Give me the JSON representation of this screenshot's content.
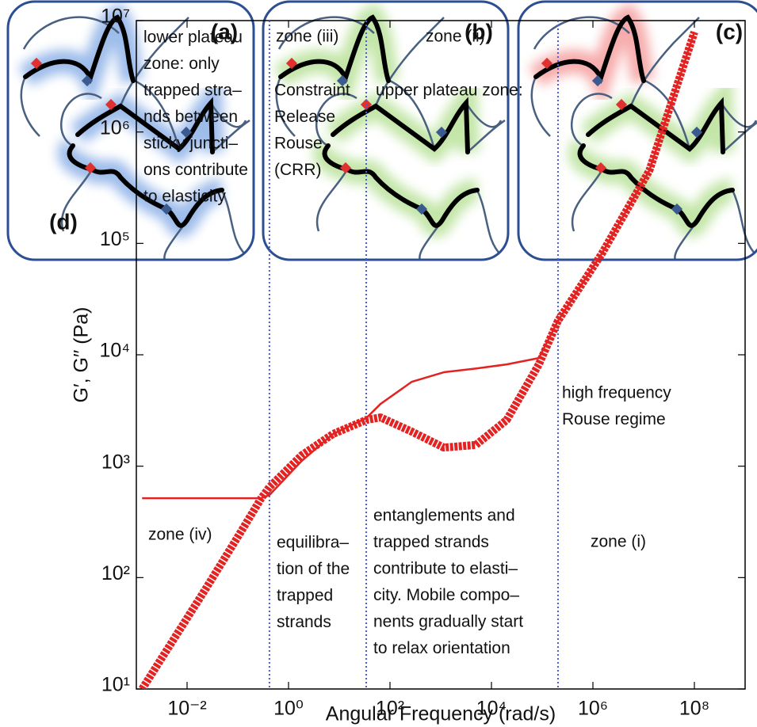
{
  "panel_labels": [
    "(a)",
    "(b)",
    "(c)"
  ],
  "chart_data": {
    "type": "line",
    "panel_label": "(d)",
    "xlabel": "Angular Frequency (rad/s)",
    "ylabel": "G′, G′′ (Pa)",
    "xscale": "log",
    "yscale": "log",
    "xlim": [
      0.001,
      1000000000
    ],
    "ylim": [
      10,
      10000000
    ],
    "xticks": [
      {
        "value": 0.01,
        "label": "10⁻²"
      },
      {
        "value": 1,
        "label": "10⁰"
      },
      {
        "value": 100,
        "label": "10²"
      },
      {
        "value": 10000,
        "label": "10⁴"
      },
      {
        "value": 1000000,
        "label": "10⁶"
      },
      {
        "value": 100000000,
        "label": "10⁸"
      }
    ],
    "yticks": [
      {
        "value": 10,
        "label": "10¹"
      },
      {
        "value": 100,
        "label": "10²"
      },
      {
        "value": 1000,
        "label": "10³"
      },
      {
        "value": 10000,
        "label": "10⁴"
      },
      {
        "value": 100000,
        "label": "10⁵"
      },
      {
        "value": 1000000,
        "label": "10⁶"
      },
      {
        "value": 10000000,
        "label": "10⁷"
      }
    ],
    "grid": false,
    "x": [
      0.0013,
      0.0056,
      0.024,
      0.1,
      0.29,
      0.42,
      1.8,
      7.5,
      34,
      65,
      270,
      1150,
      4900,
      20000,
      86000,
      205000,
      1500000,
      13000000,
      100000000
    ],
    "series": [
      {
        "color": "#e32222",
        "marker": "none",
        "values": [
          516,
          516,
          516,
          516,
          516,
          551,
          1110,
          1945,
          2700,
          3620,
          5730,
          6970,
          7530,
          8200,
          9350,
          20200,
          81000,
          452000,
          7900000
        ]
      },
      {
        "color": "#e32222",
        "marker": "x",
        "values": [
          10,
          28.5,
          81,
          232,
          516,
          649,
          1250,
          1945,
          2600,
          2740,
          2040,
          1470,
          1550,
          2600,
          8200,
          20200,
          81000,
          452000,
          7900000
        ]
      }
    ],
    "zone_boundaries": [
      0.42,
      34,
      205000
    ],
    "zone_boundary_color": "#4a5bd4",
    "annotations": [
      [
        "lower plateau",
        "zone: only",
        "trapped stra–",
        "nds between",
        "sticky juncti–",
        "ons contribute",
        "to elasticity"
      ],
      [
        "zone (iii)"
      ],
      [
        "Constraint",
        "Release",
        "Rouse",
        "(CRR)"
      ],
      [
        "zone (ii)"
      ],
      [
        "upper plateau zone:"
      ],
      [
        "high frequency",
        "Rouse regime"
      ],
      [
        "zone (iv)"
      ],
      [
        "entanglements and",
        "trapped strands",
        "contribute to elasti–",
        "city. Mobile compo–",
        "nents gradually start",
        "to relax orientation"
      ],
      [
        "zone (i)"
      ],
      [
        "equilibra–",
        "tion of the",
        "trapped",
        "strands"
      ]
    ]
  }
}
